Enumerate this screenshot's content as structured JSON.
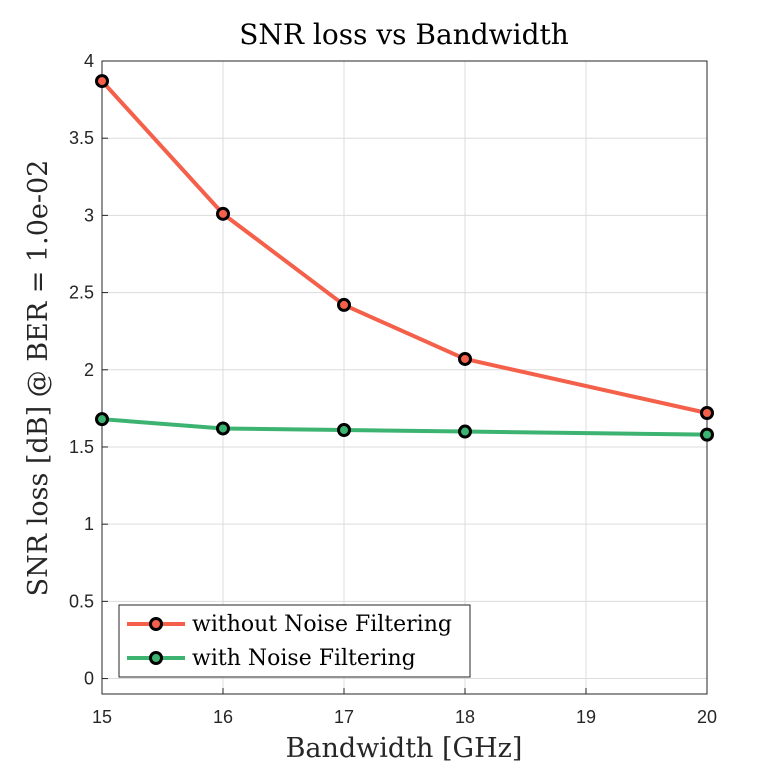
{
  "chart_data": {
    "type": "line",
    "title": "SNR loss vs Bandwidth",
    "xlabel": "Bandwidth [GHz]",
    "ylabel": "SNR loss [dB] @ BER = 1.0e-02",
    "x": [
      15,
      16,
      17,
      18,
      19,
      20
    ],
    "xlim": [
      15,
      20
    ],
    "ylim": [
      -0.1,
      4
    ],
    "xticks": [
      "15",
      "16",
      "17",
      "18",
      "19",
      "20"
    ],
    "yticks": [
      "0",
      "0.5",
      "1",
      "1.5",
      "2",
      "2.5",
      "3",
      "3.5",
      "4"
    ],
    "grid": true,
    "legend_position": "bottom-left",
    "series": [
      {
        "name": "without Noise Filtering",
        "color": "#f4604a",
        "points": [
          [
            15,
            3.87
          ],
          [
            16,
            3.01
          ],
          [
            17,
            2.42
          ],
          [
            18,
            2.07
          ],
          [
            20,
            1.72
          ]
        ]
      },
      {
        "name": "with Noise Filtering",
        "color": "#3cb371",
        "points": [
          [
            15,
            1.68
          ],
          [
            16,
            1.62
          ],
          [
            17,
            1.61
          ],
          [
            18,
            1.6
          ],
          [
            20,
            1.58
          ]
        ]
      }
    ]
  }
}
